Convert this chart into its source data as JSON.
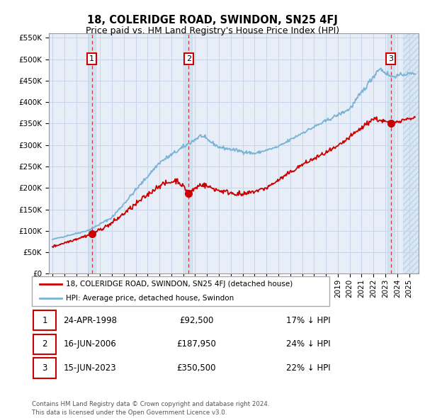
{
  "title": "18, COLERIDGE ROAD, SWINDON, SN25 4FJ",
  "subtitle": "Price paid vs. HM Land Registry's House Price Index (HPI)",
  "ylim": [
    0,
    560000
  ],
  "yticks": [
    0,
    50000,
    100000,
    150000,
    200000,
    250000,
    300000,
    350000,
    400000,
    450000,
    500000,
    550000
  ],
  "ytick_labels": [
    "£0",
    "£50K",
    "£100K",
    "£150K",
    "£200K",
    "£250K",
    "£300K",
    "£350K",
    "£400K",
    "£450K",
    "£500K",
    "£550K"
  ],
  "xlim_start": 1994.7,
  "xlim_end": 2025.8,
  "purchase_dates": [
    1998.31,
    2006.46,
    2023.46
  ],
  "purchase_prices": [
    92500,
    187950,
    350500
  ],
  "purchase_labels": [
    "1",
    "2",
    "3"
  ],
  "hpi_color": "#7ab3d4",
  "price_color": "#cc0000",
  "grid_color": "#c8d4e8",
  "bg_color": "#e8eef8",
  "legend_entries": [
    "18, COLERIDGE ROAD, SWINDON, SN25 4FJ (detached house)",
    "HPI: Average price, detached house, Swindon"
  ],
  "table_rows": [
    [
      "1",
      "24-APR-1998",
      "£92,500",
      "17% ↓ HPI"
    ],
    [
      "2",
      "16-JUN-2006",
      "£187,950",
      "24% ↓ HPI"
    ],
    [
      "3",
      "15-JUN-2023",
      "£350,500",
      "22% ↓ HPI"
    ]
  ],
  "footer": "Contains HM Land Registry data © Crown copyright and database right 2024.\nThis data is licensed under the Open Government Licence v3.0.",
  "title_fontsize": 10.5,
  "subtitle_fontsize": 9,
  "tick_fontsize": 7.5,
  "hatch_start": 2024.5
}
